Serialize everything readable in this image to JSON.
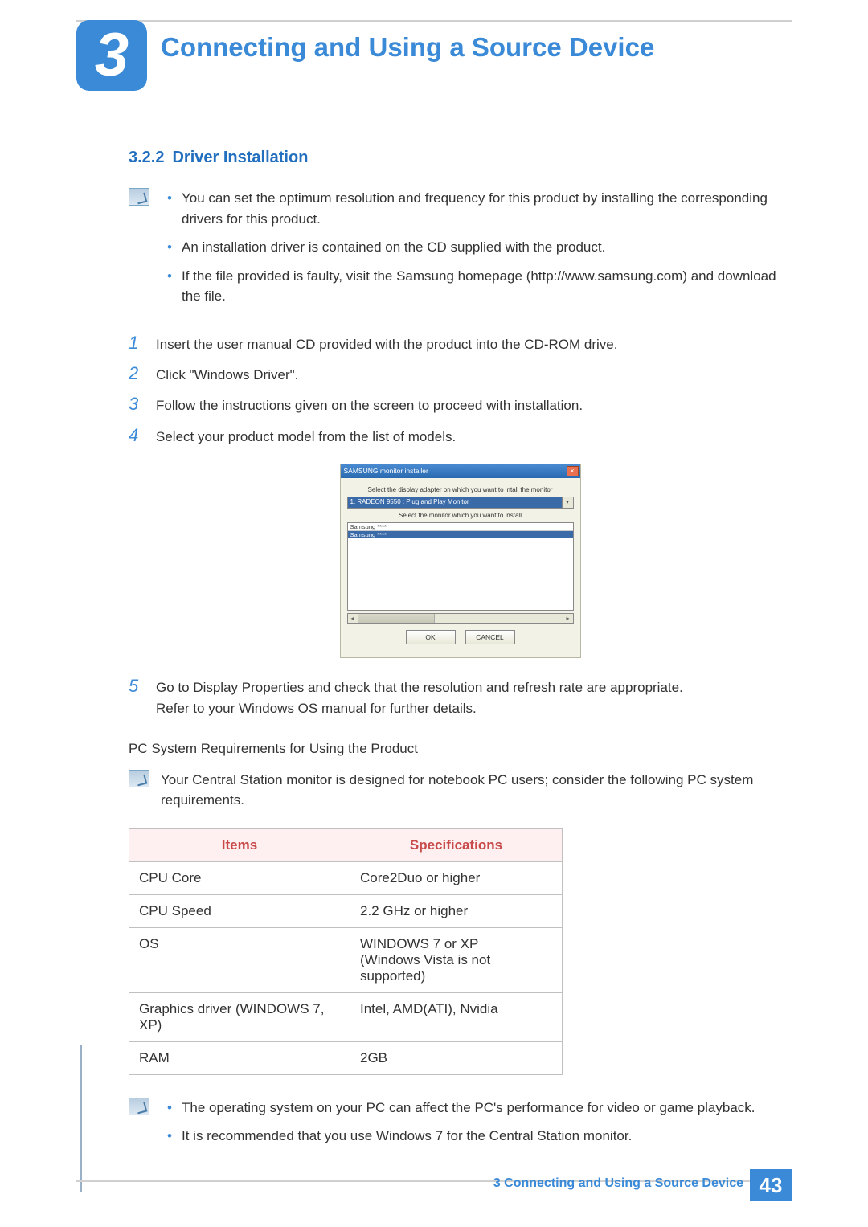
{
  "chapter": {
    "number": "3",
    "title": "Connecting and Using a Source Device"
  },
  "section": {
    "number": "3.2.2",
    "title": "Driver Installation"
  },
  "intro_notes": [
    "You can set the optimum resolution and frequency for this product by installing the corresponding drivers for this product.",
    "An installation driver is contained on the CD supplied with the product.",
    "If the file provided is faulty, visit the Samsung homepage (http://www.samsung.com) and download the file."
  ],
  "steps": {
    "s1": "Insert the user manual CD provided with the product into the CD-ROM drive.",
    "s2": "Click \"Windows Driver\".",
    "s3": "Follow the instructions given on the screen to proceed with installation.",
    "s4": "Select your product model from the list of models.",
    "s5a": "Go to Display Properties and check that the resolution and refresh rate are appropriate.",
    "s5b": "Refer to your Windows OS manual for further details."
  },
  "dialog": {
    "title": "SAMSUNG monitor installer",
    "label1": "Select the display adapter on which you want to intall the monitor",
    "adapter": "1. RADEON 9550 : Plug and Play Monitor",
    "label2": "Select the monitor which you want to install",
    "item1": "Samsung ****",
    "item2": "Samsung ****",
    "ok": "OK",
    "cancel": "CANCEL"
  },
  "req_heading": "PC System Requirements for Using the Product",
  "req_note": "Your Central Station monitor is designed for notebook PC users; consider the following PC system requirements.",
  "table": {
    "h1": "Items",
    "h2": "Specifications",
    "r1c1": "CPU Core",
    "r1c2": "Core2Duo or higher",
    "r2c1": "CPU Speed",
    "r2c2": "2.2 GHz or higher",
    "r3c1": "OS",
    "r3c2": "WINDOWS 7 or XP\n(Windows Vista is not supported)",
    "r4c1": "Graphics driver (WINDOWS 7, XP)",
    "r4c2": "Intel, AMD(ATI), Nvidia",
    "r5c1": "RAM",
    "r5c2": "2GB"
  },
  "end_notes": [
    "The operating system on your PC can affect the PC's performance for video or game playback.",
    "It is recommended that you use Windows 7 for the Central Station monitor."
  ],
  "footer": {
    "text": "3 Connecting and Using a Source Device",
    "page": "43"
  },
  "colors": {
    "accent": "#3a8ad8",
    "heading": "#236fbf",
    "table_header_bg": "#fef0f0",
    "table_header_fg": "#c84a4a",
    "border": "#c0c0c0"
  }
}
